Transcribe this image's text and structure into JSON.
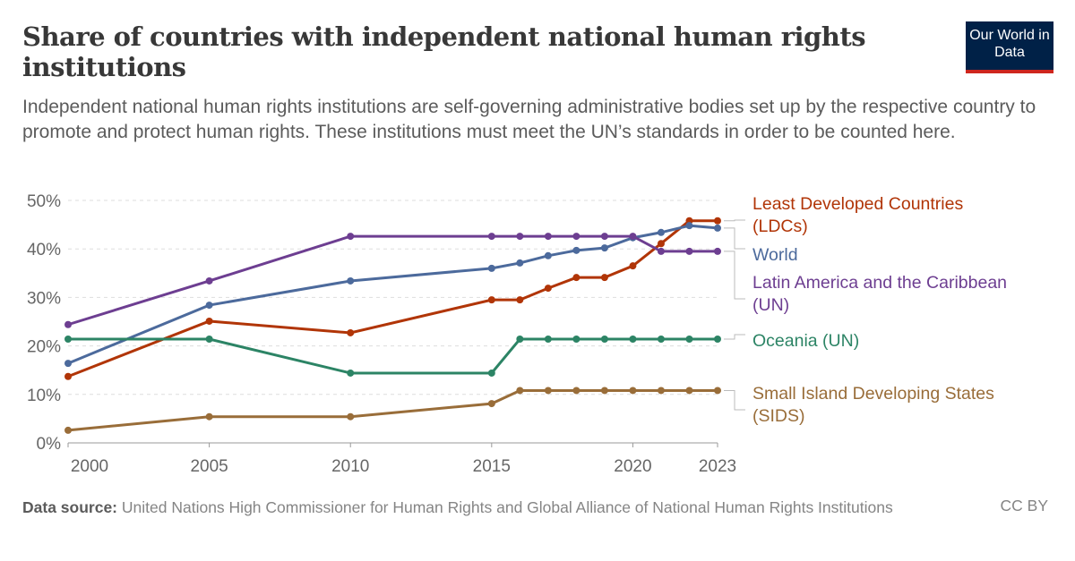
{
  "header": {
    "title": "Share of countries with independent national human rights institutions",
    "subtitle": "Independent national human rights institutions are self-governing administrative bodies set up by the respective country to promote and protect human rights. These institutions must meet the UN’s standards in order to be counted here.",
    "logo": "Our World in Data"
  },
  "footer": {
    "source_label": "Data source:",
    "source": "United Nations High Commissioner for Human Rights and Global Alliance of National Human Rights Institutions",
    "license": "CC BY"
  },
  "chart_data": {
    "type": "line",
    "x": [
      2000,
      2005,
      2010,
      2015,
      2016,
      2017,
      2018,
      2019,
      2020,
      2021,
      2022,
      2023
    ],
    "xticks": [
      2000,
      2005,
      2010,
      2015,
      2020,
      2023
    ],
    "yticks": [
      0,
      10,
      20,
      30,
      40,
      50
    ],
    "ylim": [
      0,
      50
    ],
    "xlim": [
      2000,
      2023
    ],
    "y_unit": "%",
    "grid": "horizontal dashed",
    "legend": "right, inline labels",
    "series": [
      {
        "name": "Least Developed Countries (LDCs)",
        "label_lines": [
          "Least Developed Countries",
          "(LDCs)"
        ],
        "color": "#b13507",
        "values": [
          13.7,
          25.1,
          22.7,
          29.5,
          29.5,
          31.9,
          34.1,
          34.1,
          36.5,
          41.1,
          45.8,
          45.8
        ]
      },
      {
        "name": "World",
        "label_lines": [
          "World"
        ],
        "color": "#4c6a9c",
        "values": [
          16.4,
          28.4,
          33.4,
          36.0,
          37.1,
          38.6,
          39.7,
          40.2,
          42.3,
          43.4,
          44.8,
          44.3
        ]
      },
      {
        "name": "Latin America and the Caribbean (UN)",
        "label_lines": [
          "Latin America and the Caribbean",
          "(UN)"
        ],
        "color": "#6d3e91",
        "values": [
          24.4,
          33.4,
          42.6,
          42.6,
          42.6,
          42.6,
          42.6,
          42.6,
          42.6,
          39.5,
          39.5,
          39.5
        ]
      },
      {
        "name": "Oceania (UN)",
        "label_lines": [
          "Oceania (UN)"
        ],
        "color": "#2c8465",
        "values": [
          21.4,
          21.4,
          14.4,
          14.4,
          21.4,
          21.4,
          21.4,
          21.4,
          21.4,
          21.4,
          21.4,
          21.4
        ]
      },
      {
        "name": "Small Island Developing States (SIDS)",
        "label_lines": [
          "Small Island Developing States",
          "(SIDS)"
        ],
        "color": "#996d39",
        "values": [
          2.6,
          5.4,
          5.4,
          8.1,
          10.8,
          10.8,
          10.8,
          10.8,
          10.8,
          10.8,
          10.8,
          10.8
        ]
      }
    ]
  }
}
